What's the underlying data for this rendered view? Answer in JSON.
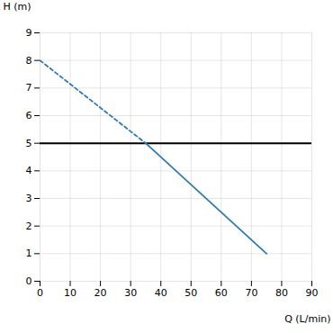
{
  "chart_data": {
    "type": "line",
    "xlabel": "Q (L/min)",
    "ylabel": "H (m)",
    "series": [
      {
        "x": [
          0,
          35
        ],
        "values": [
          8.0,
          5.0
        ],
        "color": "#2e7ab5",
        "line_style": "dashed"
      },
      {
        "x": [
          35,
          75
        ],
        "values": [
          5.0,
          1.0
        ],
        "color": "#2e7ab5",
        "line_style": "solid"
      }
    ],
    "hline": {
      "y": 5.0,
      "color": "#000000"
    },
    "xlim": [
      0,
      90
    ],
    "ylim": [
      0,
      9
    ],
    "xticks": [
      0,
      10,
      20,
      30,
      40,
      50,
      60,
      70,
      80,
      90
    ],
    "yticks": [
      0,
      1,
      2,
      3,
      4,
      5,
      6,
      7,
      8,
      9
    ],
    "grid": true
  }
}
